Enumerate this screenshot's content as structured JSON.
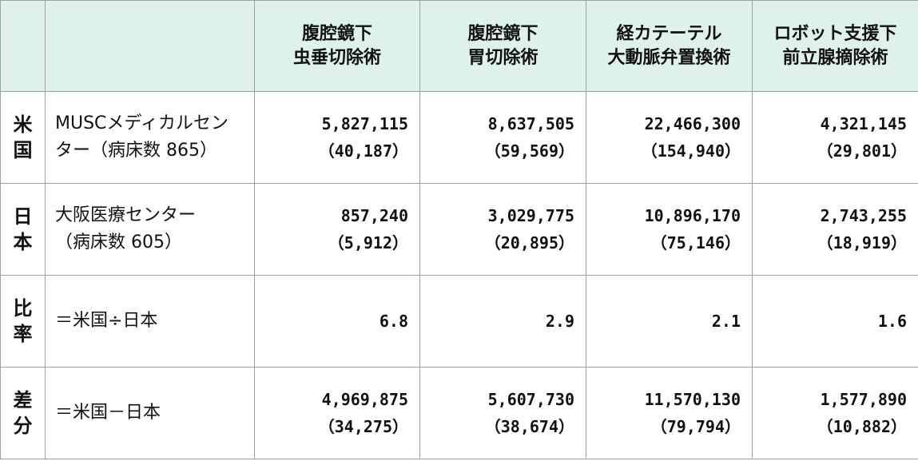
{
  "header": {
    "columns": [
      {
        "line1": "腹腔鏡下",
        "line2": "虫垂切除術"
      },
      {
        "line1": "腹腔鏡下",
        "line2": "胃切除術"
      },
      {
        "line1": "経カテーテル",
        "line2": "大動脈弁置換術"
      },
      {
        "line1": "ロボット支援下",
        "line2": "前立腺摘除術"
      }
    ]
  },
  "rows": [
    {
      "side": [
        "米",
        "国"
      ],
      "label": [
        "MUSCメディカルセン",
        "ター（病床数 865）"
      ],
      "cells": [
        {
          "main": "5,827,115",
          "sub": "（40,187）"
        },
        {
          "main": "8,637,505",
          "sub": "（59,569）"
        },
        {
          "main": "22,466,300",
          "sub": "（154,940）"
        },
        {
          "main": "4,321,145",
          "sub": "（29,801）"
        }
      ]
    },
    {
      "side": [
        "日",
        "本"
      ],
      "label": [
        "大阪医療センター",
        "（病床数 605）"
      ],
      "cells": [
        {
          "main": "857,240",
          "sub": "（5,912）"
        },
        {
          "main": "3,029,775",
          "sub": "（20,895）"
        },
        {
          "main": "10,896,170",
          "sub": "（75,146）"
        },
        {
          "main": "2,743,255",
          "sub": "（18,919）"
        }
      ]
    },
    {
      "side": [
        "比",
        "率"
      ],
      "label": [
        "＝米国÷日本"
      ],
      "cells": [
        {
          "main": "6.8"
        },
        {
          "main": "2.9"
        },
        {
          "main": "2.1"
        },
        {
          "main": "1.6"
        }
      ]
    },
    {
      "side": [
        "差",
        "分"
      ],
      "label": [
        "＝米国－日本"
      ],
      "cells": [
        {
          "main": "4,969,875",
          "sub": "（34,275）"
        },
        {
          "main": "5,607,730",
          "sub": "（38,674）"
        },
        {
          "main": "11,570,130",
          "sub": "（79,794）"
        },
        {
          "main": "1,577,890",
          "sub": "（10,882）"
        }
      ]
    }
  ]
}
